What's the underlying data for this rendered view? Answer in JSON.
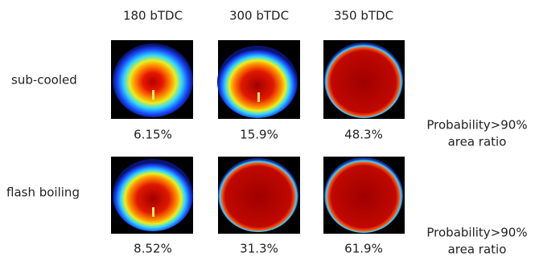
{
  "columns": [
    "180 bTDC",
    "300 bTDC",
    "350 bTDC"
  ],
  "rows": [
    {
      "label": "sub-cooled",
      "values": [
        "6.15%",
        "15.9%",
        "48.3%"
      ],
      "note": [
        "Probability>90%",
        "area ratio"
      ]
    },
    {
      "label": "flash boiling",
      "values": [
        "8.52%",
        "31.3%",
        "61.9%"
      ],
      "note": [
        "Probability>90%",
        "area ratio"
      ]
    }
  ]
}
